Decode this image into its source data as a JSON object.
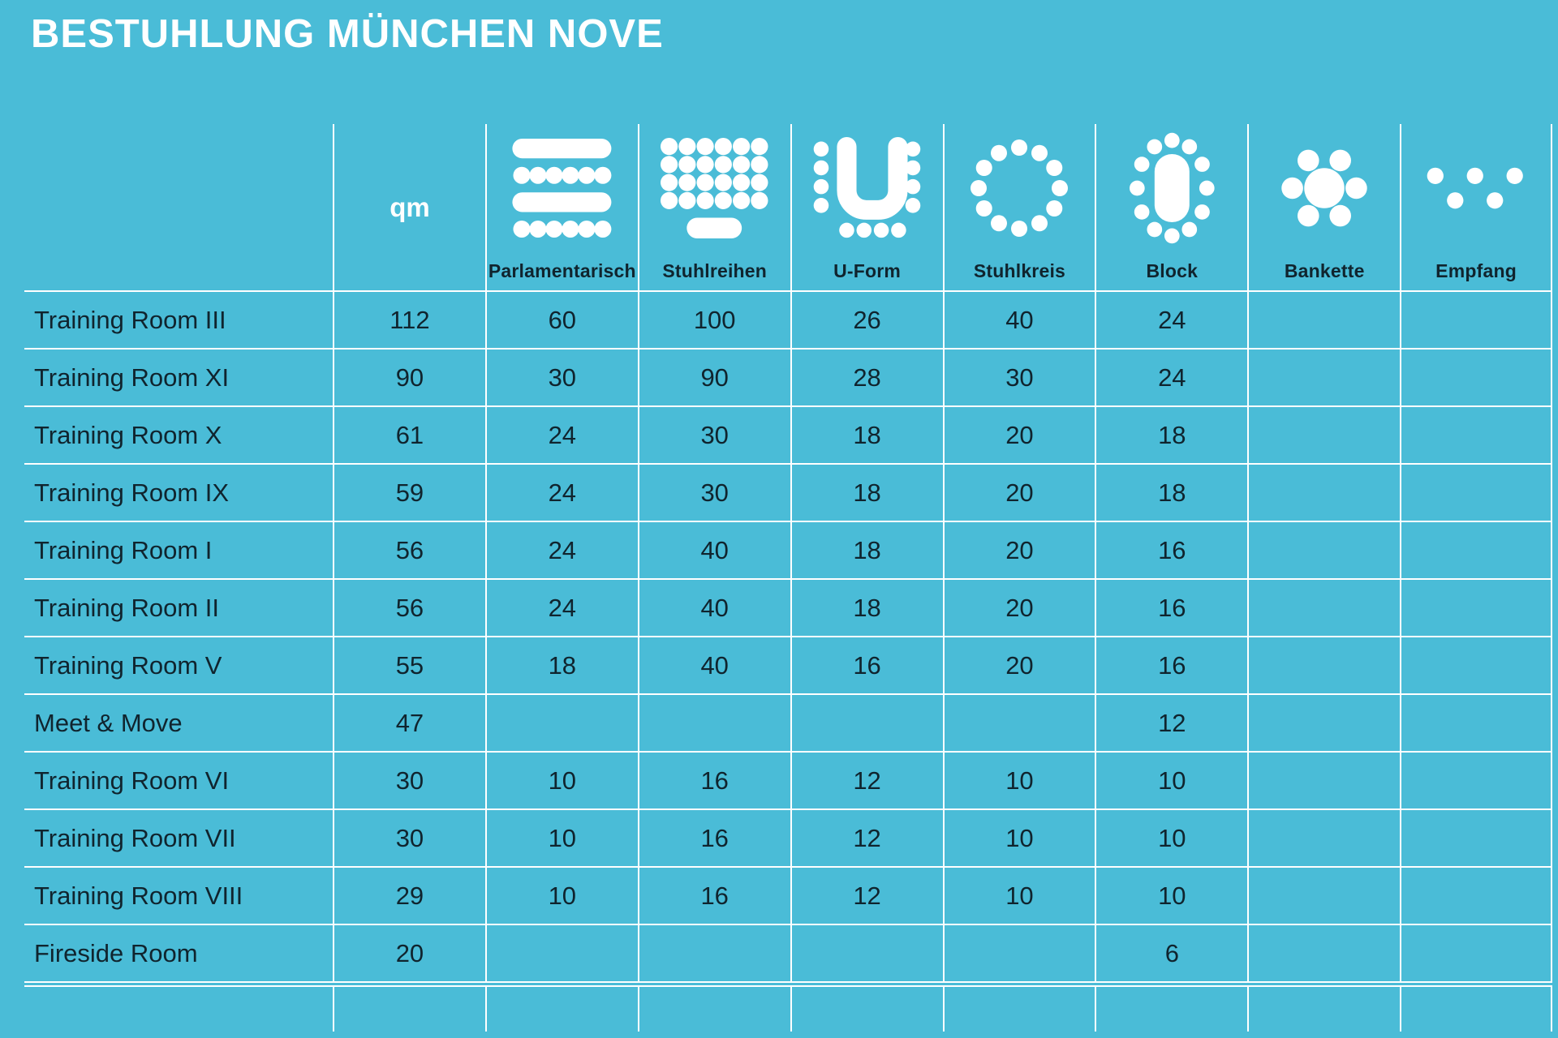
{
  "title": "BESTUHLUNG MÜNCHEN NOVE",
  "colors": {
    "background": "#4abcd7",
    "grid_line": "#ffffff",
    "title_text": "#ffffff",
    "qm_text": "#ffffff",
    "cell_text": "#10242e"
  },
  "table": {
    "qm_header": "qm",
    "columns": [
      {
        "key": "parlamentarisch",
        "label": "Parlamentarisch",
        "icon": "parliamentary-seating-icon"
      },
      {
        "key": "stuhlreihen",
        "label": "Stuhlreihen",
        "icon": "chair-rows-icon"
      },
      {
        "key": "uform",
        "label": "U-Form",
        "icon": "u-shape-seating-icon"
      },
      {
        "key": "stuhlkreis",
        "label": "Stuhlkreis",
        "icon": "chair-circle-icon"
      },
      {
        "key": "block",
        "label": "Block",
        "icon": "block-table-icon"
      },
      {
        "key": "bankette",
        "label": "Bankette",
        "icon": "banquet-table-icon"
      },
      {
        "key": "empfang",
        "label": "Empfang",
        "icon": "reception-dots-icon"
      }
    ],
    "rows": [
      {
        "room": "Training Room III",
        "qm": "112",
        "parlamentarisch": "60",
        "stuhlreihen": "100",
        "uform": "26",
        "stuhlkreis": "40",
        "block": "24",
        "bankette": "",
        "empfang": ""
      },
      {
        "room": "Training Room XI",
        "qm": "90",
        "parlamentarisch": "30",
        "stuhlreihen": "90",
        "uform": "28",
        "stuhlkreis": "30",
        "block": "24",
        "bankette": "",
        "empfang": ""
      },
      {
        "room": "Training Room X",
        "qm": "61",
        "parlamentarisch": "24",
        "stuhlreihen": "30",
        "uform": "18",
        "stuhlkreis": "20",
        "block": "18",
        "bankette": "",
        "empfang": ""
      },
      {
        "room": "Training Room IX",
        "qm": "59",
        "parlamentarisch": "24",
        "stuhlreihen": "30",
        "uform": "18",
        "stuhlkreis": "20",
        "block": "18",
        "bankette": "",
        "empfang": ""
      },
      {
        "room": "Training Room I",
        "qm": "56",
        "parlamentarisch": "24",
        "stuhlreihen": "40",
        "uform": "18",
        "stuhlkreis": "20",
        "block": "16",
        "bankette": "",
        "empfang": ""
      },
      {
        "room": "Training Room II",
        "qm": "56",
        "parlamentarisch": "24",
        "stuhlreihen": "40",
        "uform": "18",
        "stuhlkreis": "20",
        "block": "16",
        "bankette": "",
        "empfang": ""
      },
      {
        "room": "Training Room V",
        "qm": "55",
        "parlamentarisch": "18",
        "stuhlreihen": "40",
        "uform": "16",
        "stuhlkreis": "20",
        "block": "16",
        "bankette": "",
        "empfang": ""
      },
      {
        "room": "Meet & Move",
        "qm": "47",
        "parlamentarisch": "",
        "stuhlreihen": "",
        "uform": "",
        "stuhlkreis": "",
        "block": "12",
        "bankette": "",
        "empfang": ""
      },
      {
        "room": "Training Room VI",
        "qm": "30",
        "parlamentarisch": "10",
        "stuhlreihen": "16",
        "uform": "12",
        "stuhlkreis": "10",
        "block": "10",
        "bankette": "",
        "empfang": ""
      },
      {
        "room": "Training Room VII",
        "qm": "30",
        "parlamentarisch": "10",
        "stuhlreihen": "16",
        "uform": "12",
        "stuhlkreis": "10",
        "block": "10",
        "bankette": "",
        "empfang": ""
      },
      {
        "room": "Training Room VIII",
        "qm": "29",
        "parlamentarisch": "10",
        "stuhlreihen": "16",
        "uform": "12",
        "stuhlkreis": "10",
        "block": "10",
        "bankette": "",
        "empfang": ""
      },
      {
        "room": "Fireside Room",
        "qm": "20",
        "parlamentarisch": "",
        "stuhlreihen": "",
        "uform": "",
        "stuhlkreis": "",
        "block": "6",
        "bankette": "",
        "empfang": ""
      }
    ]
  }
}
